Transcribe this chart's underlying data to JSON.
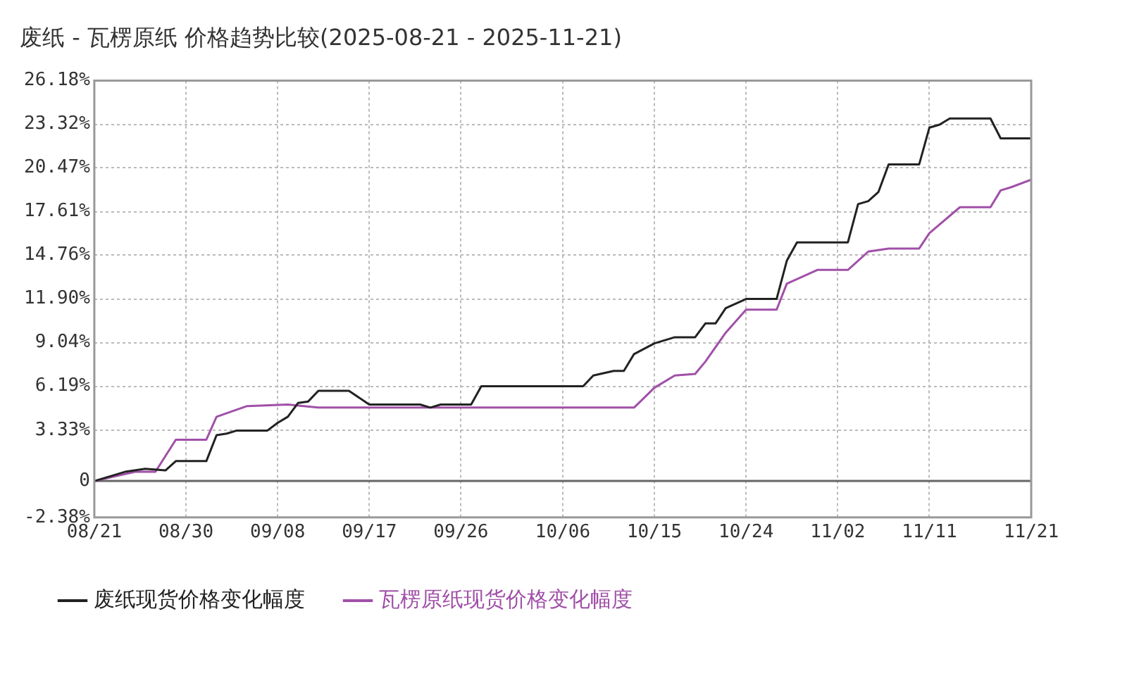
{
  "chart_data": {
    "type": "line",
    "title": "废纸 - 瓦楞原纸 价格趋势比较(2025-08-21 - 2025-11-21)",
    "xlim": [
      "2025-08-21",
      "2025-11-21"
    ],
    "xticks": [
      {
        "value": "2025-08-21",
        "label": "08/21"
      },
      {
        "value": "2025-08-30",
        "label": "08/30"
      },
      {
        "value": "2025-09-08",
        "label": "09/08"
      },
      {
        "value": "2025-09-17",
        "label": "09/17"
      },
      {
        "value": "2025-09-26",
        "label": "09/26"
      },
      {
        "value": "2025-10-06",
        "label": "10/06"
      },
      {
        "value": "2025-10-15",
        "label": "10/15"
      },
      {
        "value": "2025-10-24",
        "label": "10/24"
      },
      {
        "value": "2025-11-02",
        "label": "11/02"
      },
      {
        "value": "2025-11-11",
        "label": "11/11"
      },
      {
        "value": "2025-11-21",
        "label": "11/21"
      }
    ],
    "ylim": [
      -2.38,
      26.18
    ],
    "yticks": [
      {
        "value": -2.38,
        "label": "-2.38%"
      },
      0,
      {
        "value": 3.33,
        "label": "3.33%"
      },
      {
        "value": 6.19,
        "label": "6.19%"
      },
      {
        "value": 9.04,
        "label": "9.04%"
      },
      {
        "value": 11.9,
        "label": "11.90%"
      },
      {
        "value": 14.76,
        "label": "14.76%"
      },
      {
        "value": 17.61,
        "label": "17.61%"
      },
      {
        "value": 20.47,
        "label": "20.47%"
      },
      {
        "value": 23.32,
        "label": "23.32%"
      },
      {
        "value": 26.18,
        "label": "26.18%"
      }
    ],
    "grid": true,
    "legend": "bottom",
    "marker": "none",
    "line_style": "solid",
    "ref_lines": [
      {
        "axis": "y",
        "value": 0,
        "color": "#666666"
      }
    ],
    "series": [
      {
        "name": "废纸现货价格变化幅度",
        "color": "#222222",
        "x": [
          "2025-08-21",
          "2025-08-24",
          "2025-08-26",
          "2025-08-28",
          "2025-08-29",
          "2025-09-01",
          "2025-09-02",
          "2025-09-03",
          "2025-09-04",
          "2025-09-07",
          "2025-09-08",
          "2025-09-09",
          "2025-09-10",
          "2025-09-11",
          "2025-09-12",
          "2025-09-15",
          "2025-09-17",
          "2025-09-22",
          "2025-09-23",
          "2025-09-24",
          "2025-09-27",
          "2025-09-28",
          "2025-10-08",
          "2025-10-09",
          "2025-10-11",
          "2025-10-12",
          "2025-10-13",
          "2025-10-15",
          "2025-10-17",
          "2025-10-19",
          "2025-10-20",
          "2025-10-21",
          "2025-10-22",
          "2025-10-24",
          "2025-10-27",
          "2025-10-28",
          "2025-10-29",
          "2025-11-03",
          "2025-11-04",
          "2025-11-05",
          "2025-11-06",
          "2025-11-07",
          "2025-11-10",
          "2025-11-11",
          "2025-11-12",
          "2025-11-13",
          "2025-11-17",
          "2025-11-18",
          "2025-11-21"
        ],
        "values": [
          0,
          0.6,
          0.8,
          0.7,
          1.3,
          1.3,
          3.0,
          3.1,
          3.3,
          3.3,
          3.8,
          4.2,
          5.1,
          5.2,
          5.9,
          5.9,
          5.0,
          5.0,
          4.8,
          5.0,
          5.0,
          6.2,
          6.2,
          6.9,
          7.2,
          7.2,
          8.3,
          9.0,
          9.4,
          9.4,
          10.3,
          10.3,
          11.3,
          11.9,
          11.9,
          14.4,
          15.6,
          15.6,
          18.1,
          18.3,
          18.9,
          20.7,
          20.7,
          23.1,
          23.3,
          23.7,
          23.7,
          22.4,
          22.4
        ]
      },
      {
        "name": "瓦楞原纸现货价格变化幅度",
        "color": "#a050a8",
        "x": [
          "2025-08-21",
          "2025-08-25",
          "2025-08-27",
          "2025-08-29",
          "2025-09-01",
          "2025-09-02",
          "2025-09-05",
          "2025-09-09",
          "2025-09-12",
          "2025-10-13",
          "2025-10-15",
          "2025-10-17",
          "2025-10-19",
          "2025-10-20",
          "2025-10-22",
          "2025-10-24",
          "2025-10-27",
          "2025-10-28",
          "2025-10-31",
          "2025-11-03",
          "2025-11-05",
          "2025-11-07",
          "2025-11-10",
          "2025-11-11",
          "2025-11-14",
          "2025-11-17",
          "2025-11-18",
          "2025-11-19",
          "2025-11-21"
        ],
        "values": [
          0,
          0.6,
          0.6,
          2.7,
          2.7,
          4.2,
          4.9,
          5.0,
          4.8,
          4.8,
          6.1,
          6.9,
          7.0,
          7.8,
          9.7,
          11.2,
          11.2,
          12.9,
          13.8,
          13.8,
          15.0,
          15.2,
          15.2,
          16.2,
          17.9,
          17.9,
          19.0,
          19.2,
          19.7
        ]
      }
    ]
  }
}
